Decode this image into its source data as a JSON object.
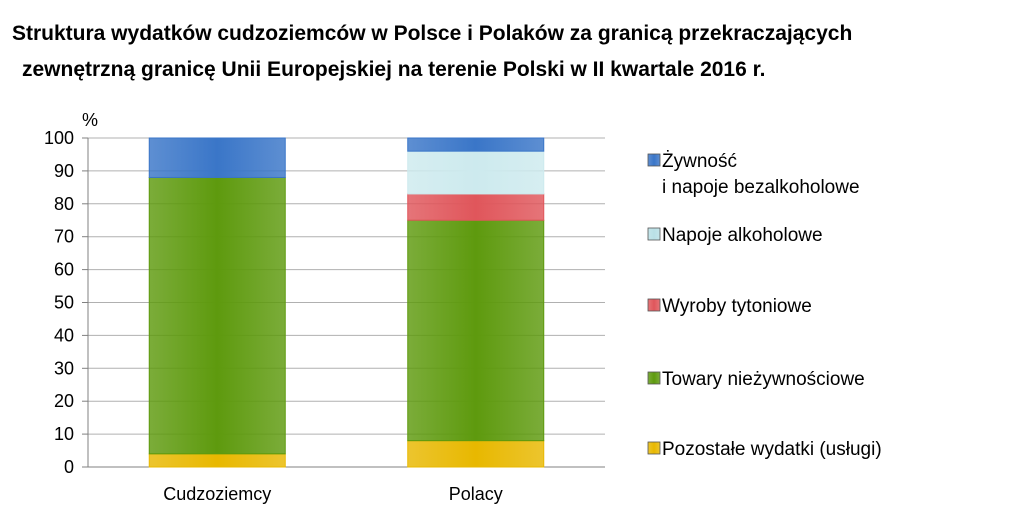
{
  "chart_data": {
    "type": "stacked-bar",
    "title_line1": "Struktura wydatków cudzoziemców w Polsce i Polaków za granicą przekraczających",
    "title_line2": "zewnętrzną granicę Unii Europejskiej na terenie Polski w II kwartale 2016 r.",
    "ylabel": "%",
    "ylim": [
      0,
      100
    ],
    "yticks": [
      0,
      10,
      20,
      30,
      40,
      50,
      60,
      70,
      80,
      90,
      100
    ],
    "grid": true,
    "legend_position": "right",
    "categories": [
      "Cudzoziemcy",
      "Polacy"
    ],
    "series": [
      {
        "name": "Pozostałe wydatki (usługi)",
        "color": "#e8b800",
        "values": [
          4,
          8
        ]
      },
      {
        "name": "Towary nieżywnościowe",
        "color": "#5e9a0e",
        "values": [
          84,
          67
        ]
      },
      {
        "name": "Wyroby tytoniowe",
        "color": "#e0565b",
        "values": [
          0,
          8
        ]
      },
      {
        "name": "Napoje alkoholowe",
        "color": "#cdeaee",
        "values": [
          0,
          13
        ]
      },
      {
        "name": "Żywność i napoje bezalkoholowe",
        "color": "#3a76c8",
        "values": [
          12,
          4
        ]
      }
    ],
    "legend": [
      {
        "lines": [
          "Żywność",
          "i napoje bezalkoholowe"
        ],
        "color": "#3a76c8"
      },
      {
        "lines": [
          "Napoje alkoholowe"
        ],
        "color": "#b9e0e6"
      },
      {
        "lines": [
          "Wyroby tytoniowe"
        ],
        "color": "#e0565b"
      },
      {
        "lines": [
          "Towary nieżywnościowe"
        ],
        "color": "#5e9a0e"
      },
      {
        "lines": [
          "Pozostałe wydatki (usługi)"
        ],
        "color": "#e8b800"
      }
    ]
  }
}
